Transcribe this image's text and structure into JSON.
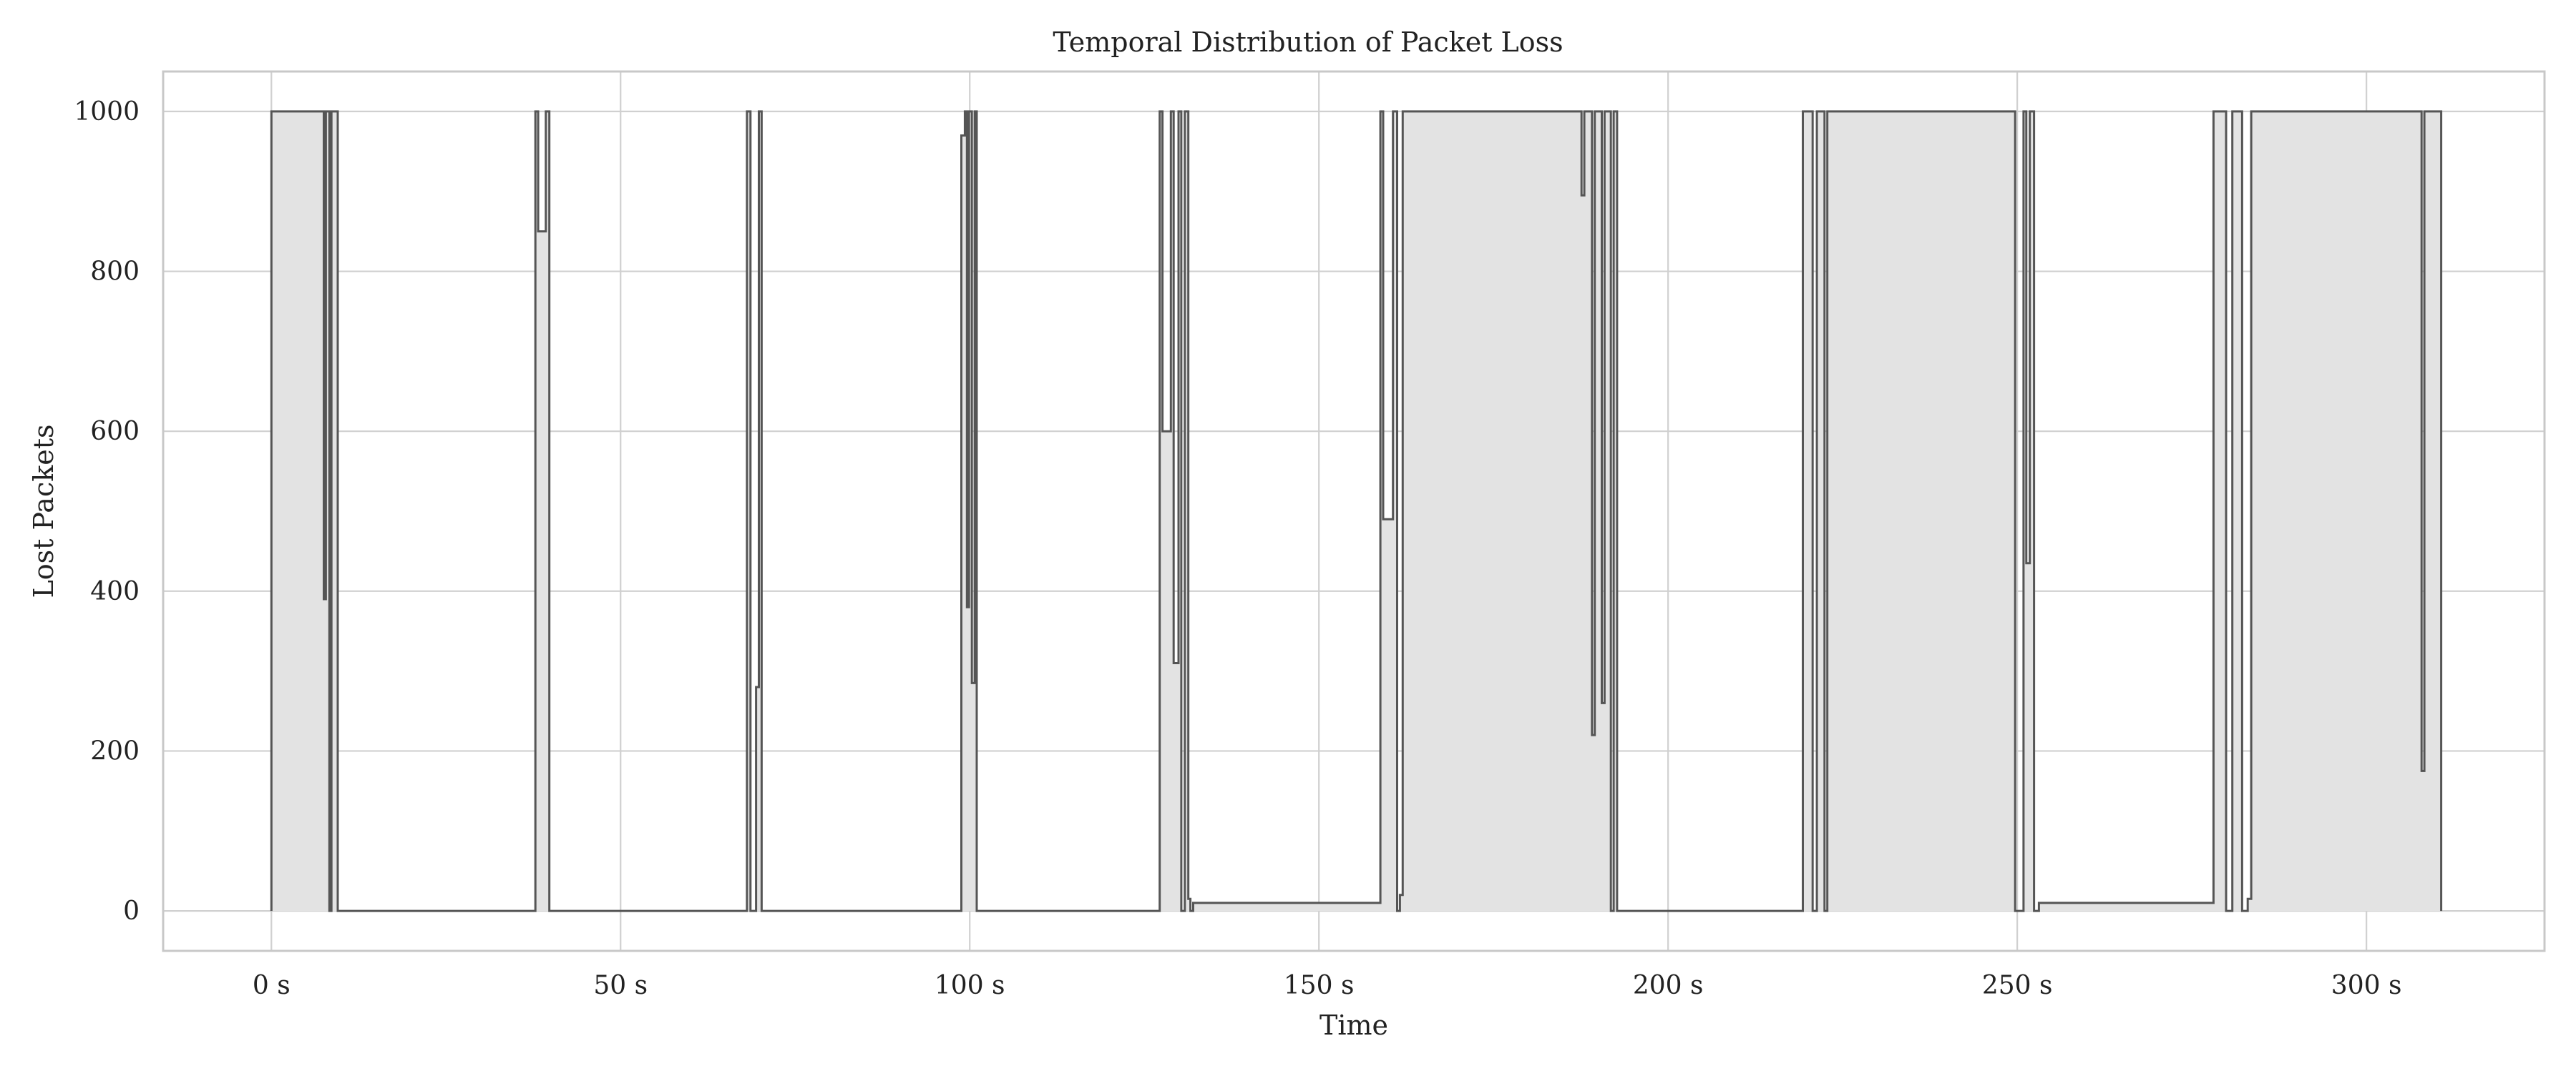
{
  "chart_data": {
    "type": "area",
    "title": "Temporal Distribution of Packet Loss",
    "xlabel": "Time",
    "ylabel": "Lost Packets",
    "xlim": [
      -15.5,
      325.5
    ],
    "ylim": [
      -50,
      1050
    ],
    "x_unit": "s",
    "x_ticks": [
      0,
      50,
      100,
      150,
      200,
      250,
      300
    ],
    "x_tick_labels": [
      "0 s",
      "50 s",
      "100 s",
      "150 s",
      "200 s",
      "250 s",
      "300 s"
    ],
    "y_ticks": [
      0,
      200,
      400,
      600,
      800,
      1000
    ],
    "y_tick_labels": [
      "0",
      "200",
      "400",
      "600",
      "800",
      "1000"
    ],
    "grid": true,
    "colors": {
      "fill": "#e3e3e3",
      "line": "#555555",
      "grid": "#d0d0d0"
    },
    "series": [
      {
        "x": [
          0,
          0,
          7.5,
          7.5,
          7.8,
          7.8,
          8.3,
          8.3,
          8.6,
          8.6,
          9.5,
          9.5,
          37.8,
          37.8,
          38.2,
          38.2,
          39.3,
          39.3,
          39.8,
          39.8,
          68.1,
          68.1,
          68.6,
          68.6,
          69.4,
          69.4,
          69.8,
          69.8,
          70.2,
          70.2,
          98.8,
          98.8,
          99.3,
          99.3,
          99.6,
          99.6,
          99.9,
          99.9,
          100.3,
          100.3,
          100.7,
          100.7,
          101.0,
          101.0,
          127.2,
          127.2,
          127.6,
          127.6,
          128.8,
          128.8,
          129.2,
          129.2,
          129.9,
          129.9,
          130.3,
          130.3,
          130.8,
          130.8,
          131.3,
          131.3,
          131.6,
          131.6,
          132.0,
          132.0,
          158.8,
          158.8,
          159.2,
          159.2,
          160.6,
          160.6,
          161.2,
          161.2,
          161.6,
          161.6,
          162.0,
          162.0,
          187.6,
          187.6,
          188.0,
          188.0,
          189.1,
          189.1,
          189.5,
          189.5,
          190.5,
          190.5,
          190.9,
          190.9,
          191.8,
          191.8,
          192.2,
          192.2,
          192.7,
          192.7,
          219.3,
          219.3,
          220.7,
          220.7,
          221.3,
          221.3,
          222.4,
          222.4,
          222.8,
          222.8,
          249.7,
          249.7,
          250.9,
          250.9,
          251.3,
          251.3,
          251.8,
          251.8,
          252.4,
          252.4,
          253.1,
          253.1,
          278.1,
          278.1,
          279.9,
          279.9,
          280.8,
          280.8,
          282.2,
          282.2,
          283.0,
          283.0,
          283.5,
          283.5,
          307.9,
          307.9,
          308.3,
          308.3,
          310.7,
          310.7
        ],
        "y": [
          0,
          1000,
          1000,
          390,
          390,
          1000,
          1000,
          0,
          0,
          1000,
          1000,
          0,
          0,
          1000,
          1000,
          850,
          850,
          1000,
          1000,
          0,
          0,
          1000,
          1000,
          0,
          0,
          280,
          280,
          1000,
          1000,
          0,
          0,
          970,
          970,
          1000,
          1000,
          380,
          380,
          1000,
          1000,
          285,
          285,
          1000,
          1000,
          0,
          0,
          1000,
          1000,
          600,
          600,
          1000,
          1000,
          310,
          310,
          1000,
          1000,
          0,
          0,
          1000,
          1000,
          15,
          15,
          0,
          0,
          10,
          10,
          1000,
          1000,
          490,
          490,
          1000,
          1000,
          0,
          0,
          20,
          20,
          1000,
          1000,
          895,
          895,
          1000,
          1000,
          220,
          220,
          1000,
          1000,
          260,
          260,
          1000,
          1000,
          0,
          0,
          1000,
          1000,
          0,
          0,
          1000,
          1000,
          0,
          0,
          1000,
          1000,
          0,
          0,
          1000,
          1000,
          0,
          0,
          1000,
          1000,
          435,
          435,
          1000,
          1000,
          0,
          0,
          10,
          10,
          1000,
          1000,
          0,
          0,
          1000,
          1000,
          0,
          0,
          15,
          15,
          1000,
          1000,
          175,
          175,
          1000,
          1000,
          0
        ]
      }
    ]
  }
}
